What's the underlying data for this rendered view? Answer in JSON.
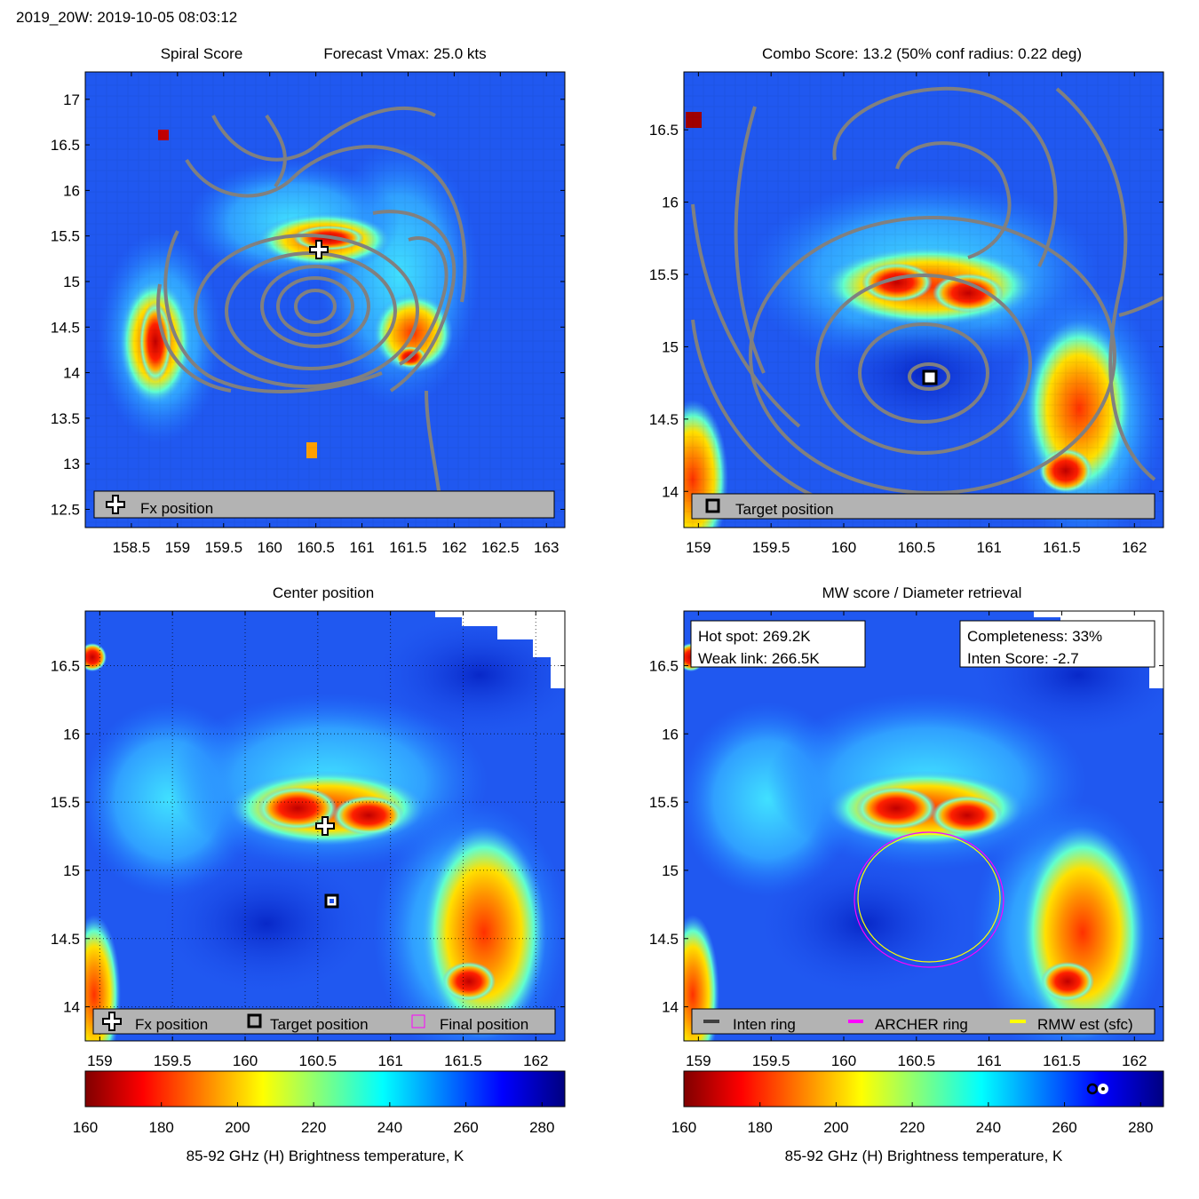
{
  "figure": {
    "header": "2019_20W: 2019-10-05 08:03:12"
  },
  "panels": {
    "spiral": {
      "title_left": "Spiral Score",
      "title_right": "Forecast Vmax: 25.0 kts",
      "legend": [
        "Fx position"
      ]
    },
    "combo": {
      "title": "Combo Score: 13.2  (50% conf radius: 0.22 deg)",
      "legend": [
        "Target position"
      ]
    },
    "center": {
      "title": "Center position",
      "legend": [
        "Fx position",
        "Target position",
        "Final position"
      ]
    },
    "mw": {
      "title": "MW score / Diameter retrieval",
      "hot_spot": "Hot spot: 269.2K",
      "weak_link": "Weak link: 266.5K",
      "completeness": "Completeness: 33%",
      "inten_score": "Inten Score: -2.7",
      "legend": [
        "Inten ring",
        "ARCHER ring",
        "RMW est (sfc)"
      ]
    }
  },
  "colorbars": [
    {
      "label": "85-92 GHz (H) Brightness temperature, K",
      "ticks": [
        160,
        180,
        200,
        220,
        240,
        260,
        280
      ]
    },
    {
      "label": "85-92 GHz (H) Brightness temperature, K",
      "ticks": [
        160,
        180,
        200,
        220,
        240,
        260,
        280
      ]
    }
  ],
  "colors": {
    "contour": "#808080",
    "archer_ring": "#ff00ff",
    "rmw_ring": "#ffff00",
    "inten_ring": "#404040",
    "legend_bg": "#b3b3b3"
  },
  "chart_data": [
    {
      "type": "heatmap",
      "title": "Spiral Score",
      "subtitle": "Forecast Vmax: 25.0 kts",
      "x_ticks": [
        158.5,
        159,
        159.5,
        160,
        160.5,
        161,
        161.5,
        162,
        162.5,
        163
      ],
      "y_ticks": [
        12.5,
        13,
        13.5,
        14,
        14.5,
        15,
        15.5,
        16,
        16.5,
        17
      ],
      "xlim": [
        158.0,
        163.2
      ],
      "ylim": [
        12.3,
        17.3
      ],
      "fx_position": [
        160.55,
        15.3
      ]
    },
    {
      "type": "heatmap",
      "title": "Combo Score: 13.2  (50% conf radius: 0.22 deg)",
      "x_ticks": [
        159,
        159.5,
        160,
        160.5,
        161,
        161.5,
        162
      ],
      "y_ticks": [
        14,
        14.5,
        15,
        15.5,
        16,
        16.5
      ],
      "xlim": [
        158.9,
        162.2
      ],
      "ylim": [
        13.75,
        16.9
      ],
      "target_position": [
        160.6,
        14.77
      ]
    },
    {
      "type": "heatmap",
      "title": "Center position",
      "x_ticks": [
        159,
        159.5,
        160,
        160.5,
        161,
        161.5,
        162
      ],
      "y_ticks": [
        14,
        14.5,
        15,
        15.5,
        16,
        16.5
      ],
      "xlim": [
        158.9,
        162.2
      ],
      "ylim": [
        13.75,
        16.9
      ],
      "fx_position": [
        160.55,
        15.3
      ],
      "target_position": [
        160.6,
        14.77
      ],
      "final_position": [
        160.6,
        14.77
      ]
    },
    {
      "type": "heatmap",
      "title": "MW score / Diameter retrieval",
      "x_ticks": [
        159,
        159.5,
        160,
        160.5,
        161,
        161.5,
        162
      ],
      "y_ticks": [
        14,
        14.5,
        15,
        15.5,
        16,
        16.5
      ],
      "xlim": [
        158.9,
        162.2
      ],
      "ylim": [
        13.75,
        16.9
      ],
      "ring_center": [
        160.6,
        14.77
      ],
      "archer_ring_radius_deg": 0.5,
      "rmw_ring_radius_deg": 0.48
    }
  ]
}
